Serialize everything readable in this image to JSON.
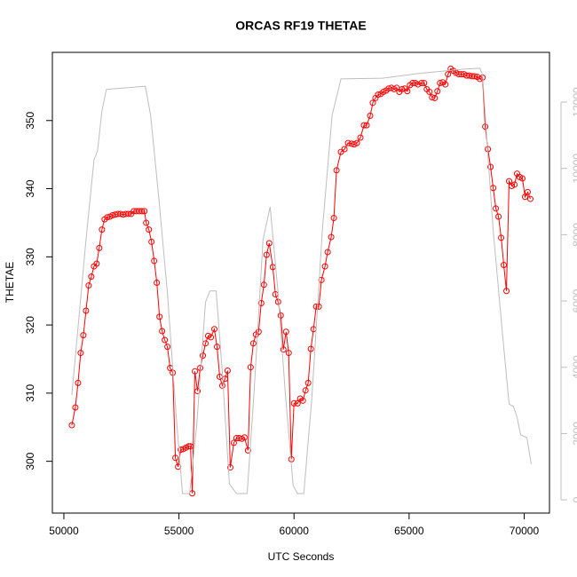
{
  "chart_data": {
    "type": "line",
    "title": "ORCAS RF19 THETAE",
    "xlabel": "UTC Seconds",
    "ylabel": "THETAE",
    "xlim": [
      49500,
      71100
    ],
    "xticks": [
      50000,
      55000,
      60000,
      65000,
      70000
    ],
    "ylim": [
      292.4,
      360
    ],
    "yticks": [
      300,
      310,
      320,
      330,
      340,
      350
    ],
    "y2lim": [
      -400,
      13500
    ],
    "y2ticks": [
      0,
      2000,
      4000,
      6000,
      8000,
      10000,
      12000
    ],
    "y2color": "#bebebe",
    "series": [
      {
        "color": "#ff0000",
        "marker": "circle",
        "x": [
          50346,
          50500,
          50615,
          50730,
          50846,
          50962,
          51077,
          51192,
          51308,
          51423,
          51538,
          51654,
          51769,
          51885,
          52000,
          52115,
          52231,
          52346,
          52462,
          52577,
          52692,
          52808,
          52923,
          53038,
          53154,
          53269,
          53385,
          53500,
          53577,
          53692,
          53808,
          53923,
          54038,
          54154,
          54269,
          54385,
          54500,
          54615,
          54731,
          54846,
          54962,
          55077,
          55192,
          55308,
          55423,
          55500,
          55577,
          55692,
          55808,
          55923,
          56038,
          56154,
          56269,
          56385,
          56538,
          56654,
          56769,
          56885,
          57000,
          57115,
          57231,
          57385,
          57500,
          57615,
          57731,
          57846,
          58000,
          58115,
          58231,
          58346,
          58462,
          58577,
          58692,
          58808,
          58923,
          59077,
          59192,
          59308,
          59423,
          59538,
          59654,
          59769,
          59885,
          60000,
          60154,
          60269,
          60385,
          60500,
          60615,
          60731,
          60846,
          60962,
          61077,
          61192,
          61346,
          61462,
          61615,
          61731,
          61846,
          62038,
          62192,
          62346,
          62500,
          62615,
          62731,
          62885,
          63038,
          63154,
          63308,
          63423,
          63538,
          63654,
          63769,
          63885,
          64000,
          64115,
          64231,
          64346,
          64462,
          64577,
          64692,
          64808,
          64923,
          65038,
          65154,
          65269,
          65385,
          65538,
          65654,
          65769,
          65885,
          66000,
          66115,
          66231,
          66346,
          66462,
          66577,
          66692,
          66808,
          66923,
          67038,
          67154,
          67269,
          67385,
          67500,
          67615,
          67731,
          67846,
          67962,
          68077,
          68192,
          68308,
          68423,
          68538,
          68654,
          68769,
          68885,
          69000,
          69115,
          69231,
          69346,
          69462,
          69577,
          69692,
          69808,
          69923,
          70038,
          70154,
          70269
        ],
        "values": [
          305.3,
          307.9,
          311.5,
          315.9,
          318.5,
          322.1,
          325.8,
          327.1,
          328.6,
          329.0,
          331.3,
          334.0,
          335.5,
          335.8,
          335.9,
          336.1,
          336.2,
          336.3,
          336.3,
          336.2,
          336.3,
          336.3,
          336.3,
          336.7,
          336.7,
          336.7,
          336.7,
          336.7,
          335.0,
          334.0,
          332.2,
          329.4,
          326.2,
          321.2,
          319.1,
          317.8,
          316.8,
          313.7,
          313.0,
          300.5,
          299.2,
          301.7,
          301.8,
          302.0,
          302.2,
          302.2,
          295.3,
          313.2,
          310.3,
          313.7,
          315.5,
          317.3,
          318.4,
          318.2,
          319.4,
          316.8,
          312.4,
          311.1,
          312.1,
          313.3,
          299.1,
          302.7,
          303.4,
          303.4,
          303.3,
          303.5,
          301.6,
          313.8,
          317.3,
          318.6,
          319.0,
          323.2,
          325.9,
          330.3,
          332.0,
          328.5,
          324.5,
          323.4,
          321.4,
          316.4,
          319.0,
          315.9,
          300.3,
          308.5,
          308.5,
          309.2,
          308.9,
          310.4,
          311.5,
          316.5,
          319.4,
          322.7,
          322.7,
          326.6,
          328.6,
          330.7,
          332.9,
          335.7,
          342.7,
          345.4,
          345.8,
          346.7,
          346.6,
          346.5,
          346.7,
          347.5,
          349.3,
          349.3,
          350.7,
          352.6,
          353.3,
          353.8,
          353.9,
          354.2,
          354.4,
          354.7,
          354.8,
          354.6,
          354.8,
          354.2,
          354.6,
          354.7,
          354.3,
          355.2,
          355.5,
          355.5,
          355.3,
          355.5,
          355.5,
          354.6,
          354.2,
          353.4,
          353.3,
          354.3,
          355.5,
          355.6,
          355.3,
          356.8,
          357.6,
          357.3,
          357.0,
          356.8,
          356.8,
          356.8,
          356.6,
          356.6,
          356.5,
          356.5,
          356.4,
          356.1,
          356.3,
          349.1,
          345.8,
          343.2,
          340.1,
          337.1,
          335.9,
          332.8,
          328.8,
          325.0,
          341.1,
          340.4,
          340.6,
          342.2,
          341.7,
          341.5,
          338.8,
          339.5,
          338.5
        ]
      },
      {
        "color": "#bebebe",
        "axis": "y2",
        "x": [
          50346,
          50577,
          50962,
          51308,
          51462,
          51654,
          51846,
          52115,
          52692,
          53538,
          53769,
          54115,
          54500,
          54885,
          55154,
          55462,
          55769,
          56154,
          56346,
          56615,
          56885,
          57192,
          57500,
          57962,
          58269,
          58654,
          58962,
          59308,
          59615,
          59962,
          60154,
          60423,
          60769,
          61231,
          61654,
          62038,
          63846,
          65385,
          67308,
          68077,
          68192,
          68385,
          68654,
          69038,
          69346,
          69538,
          69692,
          69846,
          70115,
          70308
        ],
        "values": [
          3160,
          4900,
          7850,
          10260,
          10530,
          11730,
          12380,
          12400,
          12430,
          12480,
          11600,
          9190,
          6240,
          2490,
          190,
          190,
          2220,
          5970,
          6300,
          6300,
          3830,
          480,
          190,
          190,
          3290,
          7850,
          8840,
          6240,
          3290,
          430,
          190,
          190,
          3030,
          8120,
          11600,
          12700,
          12720,
          12860,
          12990,
          13020,
          12830,
          10800,
          8120,
          5170,
          2890,
          2810,
          2490,
          1960,
          1880,
          1070
        ]
      }
    ]
  }
}
